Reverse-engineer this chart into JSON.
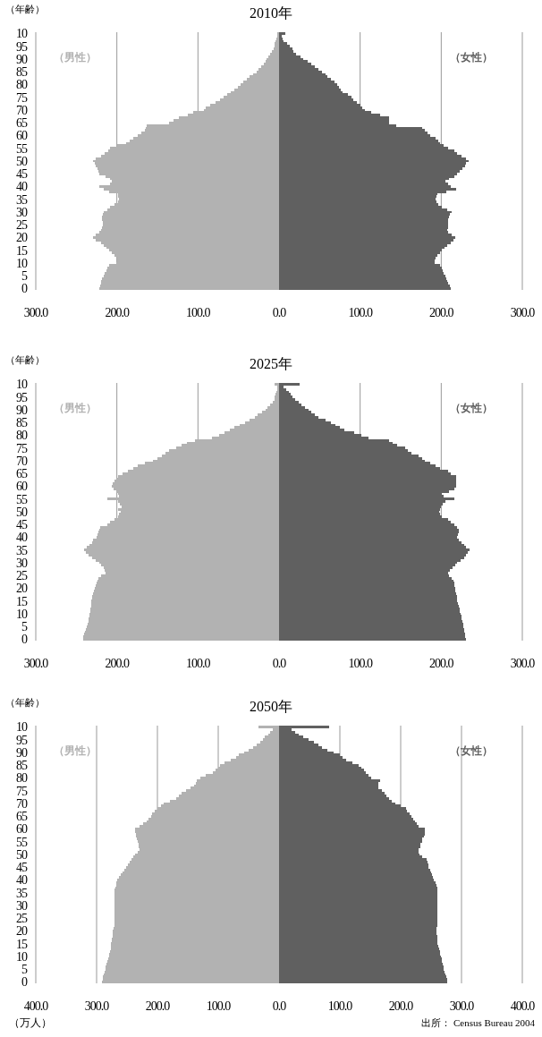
{
  "chart_data": [
    {
      "type": "bar",
      "stacked": true,
      "orientation": "horizontal",
      "title": "2010年",
      "ylabel": "（年齢）",
      "grid": "x",
      "xlim": [
        -300,
        300
      ],
      "xticks": [
        {
          "value": -300,
          "label": "300.0"
        },
        {
          "value": -200,
          "label": "200.0"
        },
        {
          "value": -100,
          "label": "100.0"
        },
        {
          "value": 0,
          "label": "0.0"
        },
        {
          "value": 100,
          "label": "100.0"
        },
        {
          "value": 200,
          "label": "200.0"
        },
        {
          "value": 300,
          "label": "300.0"
        }
      ],
      "categories": [
        "10",
        null,
        null,
        null,
        null,
        "95",
        null,
        null,
        null,
        null,
        "90",
        null,
        null,
        null,
        null,
        "85",
        null,
        null,
        null,
        null,
        "80",
        null,
        null,
        null,
        null,
        "75",
        null,
        null,
        null,
        null,
        "70",
        null,
        null,
        null,
        null,
        "65",
        null,
        null,
        null,
        null,
        "60",
        null,
        null,
        null,
        null,
        "55",
        null,
        null,
        null,
        null,
        "50",
        null,
        null,
        null,
        null,
        "45",
        null,
        null,
        null,
        null,
        "40",
        null,
        null,
        null,
        null,
        "35",
        null,
        null,
        null,
        null,
        "30",
        null,
        null,
        null,
        null,
        "25",
        null,
        null,
        null,
        null,
        "20",
        null,
        null,
        null,
        null,
        "15",
        null,
        null,
        null,
        null,
        "10",
        null,
        null,
        null,
        null,
        "5",
        null,
        null,
        null,
        null,
        "0"
      ],
      "series": [
        {
          "name": "（男性）",
          "color": "#b2b2b2",
          "values": [
            -2,
            -2,
            -3,
            -4,
            -5,
            -6,
            -7,
            -9,
            -11,
            -13,
            -15,
            -17,
            -19,
            -22,
            -25,
            -28,
            -32,
            -36,
            -40,
            -44,
            -47,
            -51,
            -55,
            -60,
            -64,
            -68,
            -73,
            -78,
            -85,
            -90,
            -93,
            -106,
            -112,
            -123,
            -130,
            -136,
            -163,
            -164,
            -165,
            -170,
            -174,
            -180,
            -184,
            -189,
            -200,
            -208,
            -211,
            -215,
            -220,
            -226,
            -229,
            -227,
            -226,
            -224,
            -223,
            -222,
            -214,
            -208,
            -206,
            -208,
            -222,
            -216,
            -210,
            -199,
            -198,
            -197,
            -199,
            -203,
            -208,
            -212,
            -216,
            -217,
            -218,
            -218,
            -217,
            -217,
            -218,
            -220,
            -222,
            -226,
            -229,
            -226,
            -220,
            -216,
            -213,
            -210,
            -206,
            -203,
            -200,
            -200,
            -201,
            -210,
            -212,
            -213,
            -215,
            -216,
            -218,
            -219,
            -220,
            -221,
            -222
          ]
        },
        {
          "name": "（女性）",
          "color": "#606060",
          "values": [
            8,
            3,
            4,
            6,
            10,
            13,
            16,
            18,
            21,
            26,
            30,
            35,
            40,
            44,
            49,
            53,
            57,
            60,
            64,
            68,
            72,
            74,
            76,
            78,
            85,
            89,
            92,
            96,
            100,
            103,
            106,
            114,
            125,
            136,
            136,
            136,
            144,
            177,
            180,
            183,
            186,
            193,
            196,
            199,
            203,
            208,
            216,
            220,
            225,
            230,
            234,
            231,
            229,
            226,
            223,
            220,
            216,
            210,
            205,
            208,
            212,
            218,
            206,
            195,
            194,
            193,
            194,
            196,
            201,
            207,
            213,
            211,
            210,
            209,
            209,
            208,
            208,
            207,
            208,
            213,
            217,
            215,
            212,
            207,
            204,
            201,
            198,
            195,
            193,
            192,
            192,
            199,
            201,
            202,
            203,
            205,
            206,
            207,
            209,
            211,
            212
          ]
        }
      ]
    },
    {
      "type": "bar",
      "stacked": true,
      "orientation": "horizontal",
      "title": "2025年",
      "ylabel": "（年齢）",
      "grid": "x",
      "xlim": [
        -300,
        300
      ],
      "xticks": [
        {
          "value": -300,
          "label": "300.0"
        },
        {
          "value": -200,
          "label": "200.0"
        },
        {
          "value": -100,
          "label": "100.0"
        },
        {
          "value": 0,
          "label": "0.0"
        },
        {
          "value": 100,
          "label": "100.0"
        },
        {
          "value": 200,
          "label": "200.0"
        },
        {
          "value": 300,
          "label": "300.0"
        }
      ],
      "categories": [
        "10",
        null,
        null,
        null,
        null,
        "95",
        null,
        null,
        null,
        null,
        "90",
        null,
        null,
        null,
        null,
        "85",
        null,
        null,
        null,
        null,
        "80",
        null,
        null,
        null,
        null,
        "75",
        null,
        null,
        null,
        null,
        "70",
        null,
        null,
        null,
        null,
        "65",
        null,
        null,
        null,
        null,
        "60",
        null,
        null,
        null,
        null,
        "55",
        null,
        null,
        null,
        null,
        "50",
        null,
        null,
        null,
        null,
        "45",
        null,
        null,
        null,
        null,
        "40",
        null,
        null,
        null,
        null,
        "35",
        null,
        null,
        null,
        null,
        "30",
        null,
        null,
        null,
        null,
        "25",
        null,
        null,
        null,
        null,
        "20",
        null,
        null,
        null,
        null,
        "15",
        null,
        null,
        null,
        null,
        "10",
        null,
        null,
        null,
        null,
        "5",
        null,
        null,
        null,
        null,
        "0"
      ],
      "series": [
        {
          "name": "（男性）",
          "color": "#b2b2b2",
          "values": [
            -6,
            -2,
            -2,
            -3,
            -4,
            -5,
            -6,
            -8,
            -11,
            -14,
            -17,
            -21,
            -26,
            -30,
            -36,
            -42,
            -48,
            -55,
            -61,
            -67,
            -74,
            -83,
            -104,
            -114,
            -120,
            -127,
            -136,
            -140,
            -144,
            -150,
            -155,
            -165,
            -174,
            -180,
            -186,
            -193,
            -199,
            -201,
            -203,
            -205,
            -206,
            -204,
            -201,
            -199,
            -197,
            -212,
            -199,
            -196,
            -194,
            -199,
            -195,
            -197,
            -199,
            -203,
            -208,
            -212,
            -221,
            -222,
            -223,
            -224,
            -225,
            -229,
            -231,
            -234,
            -237,
            -240,
            -238,
            -235,
            -231,
            -226,
            -222,
            -219,
            -216,
            -215,
            -214,
            -220,
            -223,
            -224,
            -225,
            -226,
            -227,
            -228,
            -229,
            -230,
            -231,
            -232,
            -232,
            -232,
            -233,
            -233,
            -234,
            -234,
            -235,
            -235,
            -236,
            -237,
            -238,
            -239,
            -240,
            -241,
            -242
          ]
        },
        {
          "name": "（女性）",
          "color": "#606060",
          "values": [
            25,
            6,
            9,
            12,
            14,
            17,
            20,
            24,
            28,
            32,
            36,
            40,
            44,
            49,
            57,
            64,
            70,
            75,
            81,
            93,
            102,
            110,
            136,
            140,
            146,
            155,
            159,
            163,
            172,
            176,
            180,
            186,
            193,
            199,
            208,
            212,
            218,
            218,
            218,
            218,
            218,
            216,
            210,
            201,
            203,
            216,
            205,
            202,
            200,
            198,
            197,
            199,
            201,
            208,
            212,
            216,
            219,
            222,
            222,
            221,
            220,
            222,
            225,
            228,
            231,
            235,
            233,
            231,
            228,
            224,
            220,
            217,
            214,
            211,
            208,
            210,
            213,
            215,
            216,
            216,
            217,
            217,
            218,
            219,
            219,
            220,
            221,
            222,
            223,
            223,
            224,
            225,
            225,
            226,
            227,
            227,
            228,
            228,
            229,
            229,
            230
          ]
        }
      ]
    },
    {
      "type": "bar",
      "stacked": true,
      "orientation": "horizontal",
      "title": "2050年",
      "ylabel": "（年齢）",
      "xlabel": "（万人）",
      "annotations": [
        "出所： Census Bureau 2004"
      ],
      "grid": "x",
      "xlim": [
        -400,
        400
      ],
      "xticks": [
        {
          "value": -400,
          "label": "400.0"
        },
        {
          "value": -300,
          "label": "300.0"
        },
        {
          "value": -200,
          "label": "200.0"
        },
        {
          "value": -100,
          "label": "100.0"
        },
        {
          "value": 0,
          "label": "0.0"
        },
        {
          "value": 100,
          "label": "100.0"
        },
        {
          "value": 200,
          "label": "200.0"
        },
        {
          "value": 300,
          "label": "300.0"
        },
        {
          "value": 400,
          "label": "400.0"
        }
      ],
      "categories": [
        "10",
        null,
        null,
        null,
        null,
        "95",
        null,
        null,
        null,
        null,
        "90",
        null,
        null,
        null,
        null,
        "85",
        null,
        null,
        null,
        null,
        "80",
        null,
        null,
        null,
        null,
        "75",
        null,
        null,
        null,
        null,
        "70",
        null,
        null,
        null,
        null,
        "65",
        null,
        null,
        null,
        null,
        "60",
        null,
        null,
        null,
        null,
        "55",
        null,
        null,
        null,
        null,
        "50",
        null,
        null,
        null,
        null,
        "45",
        null,
        null,
        null,
        null,
        "40",
        null,
        null,
        null,
        null,
        "35",
        null,
        null,
        null,
        null,
        "30",
        null,
        null,
        null,
        null,
        "25",
        null,
        null,
        null,
        null,
        "20",
        null,
        null,
        null,
        null,
        "15",
        null,
        null,
        null,
        null,
        "10",
        null,
        null,
        null,
        null,
        "5",
        null,
        null,
        null,
        null,
        "0"
      ],
      "series": [
        {
          "name": "（男性）",
          "color": "#b2b2b2",
          "values": [
            -34,
            -10,
            -14,
            -18,
            -23,
            -27,
            -31,
            -37,
            -43,
            -50,
            -57,
            -66,
            -71,
            -80,
            -89,
            -97,
            -100,
            -104,
            -109,
            -120,
            -129,
            -135,
            -137,
            -140,
            -146,
            -153,
            -160,
            -165,
            -169,
            -180,
            -189,
            -194,
            -200,
            -204,
            -209,
            -211,
            -214,
            -218,
            -223,
            -229,
            -237,
            -237,
            -236,
            -235,
            -234,
            -233,
            -231,
            -231,
            -230,
            -233,
            -237,
            -240,
            -243,
            -246,
            -249,
            -251,
            -254,
            -257,
            -260,
            -263,
            -266,
            -267,
            -268,
            -269,
            -270,
            -270,
            -270,
            -270,
            -270,
            -270,
            -270,
            -270,
            -270,
            -270,
            -270,
            -270,
            -270,
            -270,
            -271,
            -272,
            -273,
            -274,
            -274,
            -275,
            -275,
            -276,
            -277,
            -277,
            -278,
            -279,
            -280,
            -281,
            -282,
            -284,
            -285,
            -286,
            -287,
            -288,
            -289,
            -290,
            -291
          ]
        },
        {
          "name": "（女性）",
          "color": "#606060",
          "values": [
            83,
            20,
            26,
            33,
            40,
            48,
            57,
            64,
            71,
            80,
            89,
            100,
            105,
            111,
            121,
            131,
            135,
            139,
            143,
            147,
            151,
            166,
            163,
            163,
            163,
            169,
            173,
            177,
            181,
            186,
            191,
            200,
            209,
            211,
            214,
            217,
            220,
            223,
            226,
            229,
            240,
            240,
            240,
            238,
            236,
            235,
            233,
            232,
            230,
            230,
            231,
            236,
            242,
            244,
            245,
            246,
            248,
            250,
            251,
            253,
            255,
            258,
            259,
            260,
            260,
            261,
            261,
            261,
            261,
            261,
            261,
            261,
            261,
            261,
            261,
            261,
            261,
            260,
            260,
            259,
            259,
            259,
            260,
            260,
            261,
            261,
            262,
            263,
            264,
            265,
            266,
            267,
            268,
            269,
            270,
            271,
            272,
            274,
            275,
            276,
            277
          ]
        }
      ]
    }
  ]
}
